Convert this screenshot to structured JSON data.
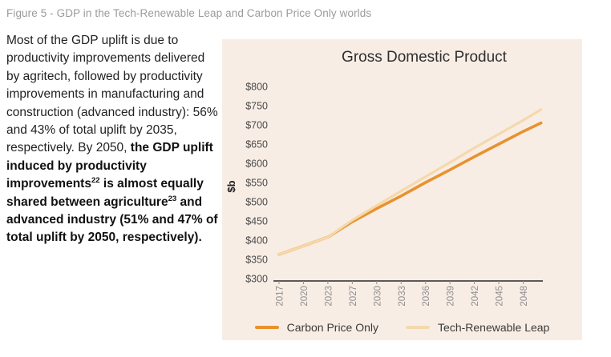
{
  "figure_caption": "Figure 5 - GDP in the Tech-Renewable Leap and Carbon Price Only worlds",
  "paragraph": {
    "segments": [
      {
        "text": "Most of the GDP uplift is due to productivity improvements delivered by agritech, followed by productivity improvements in manufacturing and construction (advanced industry): 56% and 43% of total uplift by 2035, respectively. By 2050, ",
        "bold": false,
        "sup": false
      },
      {
        "text": "the GDP uplift induced by productivity improvements",
        "bold": true,
        "sup": false
      },
      {
        "text": "22",
        "bold": true,
        "sup": true
      },
      {
        "text": " is almost equally shared between agriculture",
        "bold": true,
        "sup": false
      },
      {
        "text": "23",
        "bold": true,
        "sup": true
      },
      {
        "text": " and advanced industry (51% and 47% of total uplift by 2050, respectively).",
        "bold": true,
        "sup": false
      }
    ]
  },
  "chart_data": {
    "type": "line",
    "title": "Gross Domestic Product",
    "ylabel": "$b",
    "y_tick_prefix": "$",
    "y_ticks": [
      300,
      350,
      400,
      450,
      500,
      550,
      600,
      650,
      700,
      750,
      800
    ],
    "ylim": [
      300,
      800
    ],
    "grid": false,
    "legend_position": "bottom",
    "panel_bg": "#F8EDE5",
    "x_tick_labels": [
      "2017",
      "2020",
      "2023",
      "2027",
      "2030",
      "2033",
      "2036",
      "2039",
      "2042",
      "2045",
      "2048"
    ],
    "x_years": [
      2017,
      2020,
      2023,
      2027,
      2030,
      2033,
      2036,
      2039,
      2042,
      2045,
      2048,
      2050
    ],
    "x_index": [
      0,
      1,
      2,
      3,
      4,
      5,
      6,
      7,
      8,
      9,
      10,
      10.73
    ],
    "series": [
      {
        "name": "Carbon Price Only",
        "color": "#E8922F",
        "stroke_width": 3.6,
        "values": [
          363,
          385,
          408,
          448,
          482,
          515,
          550,
          583,
          617,
          650,
          683,
          705
        ]
      },
      {
        "name": "Tech-Renewable Leap",
        "color": "#F5D9AB",
        "stroke_width": 3.2,
        "values": [
          363,
          385,
          408,
          452,
          490,
          528,
          565,
          602,
          640,
          676,
          712,
          740
        ]
      }
    ],
    "axis_color": "#2a2a2a",
    "y_label_color": "#4a4a4a",
    "x_label_color": "#8f8f8f"
  }
}
